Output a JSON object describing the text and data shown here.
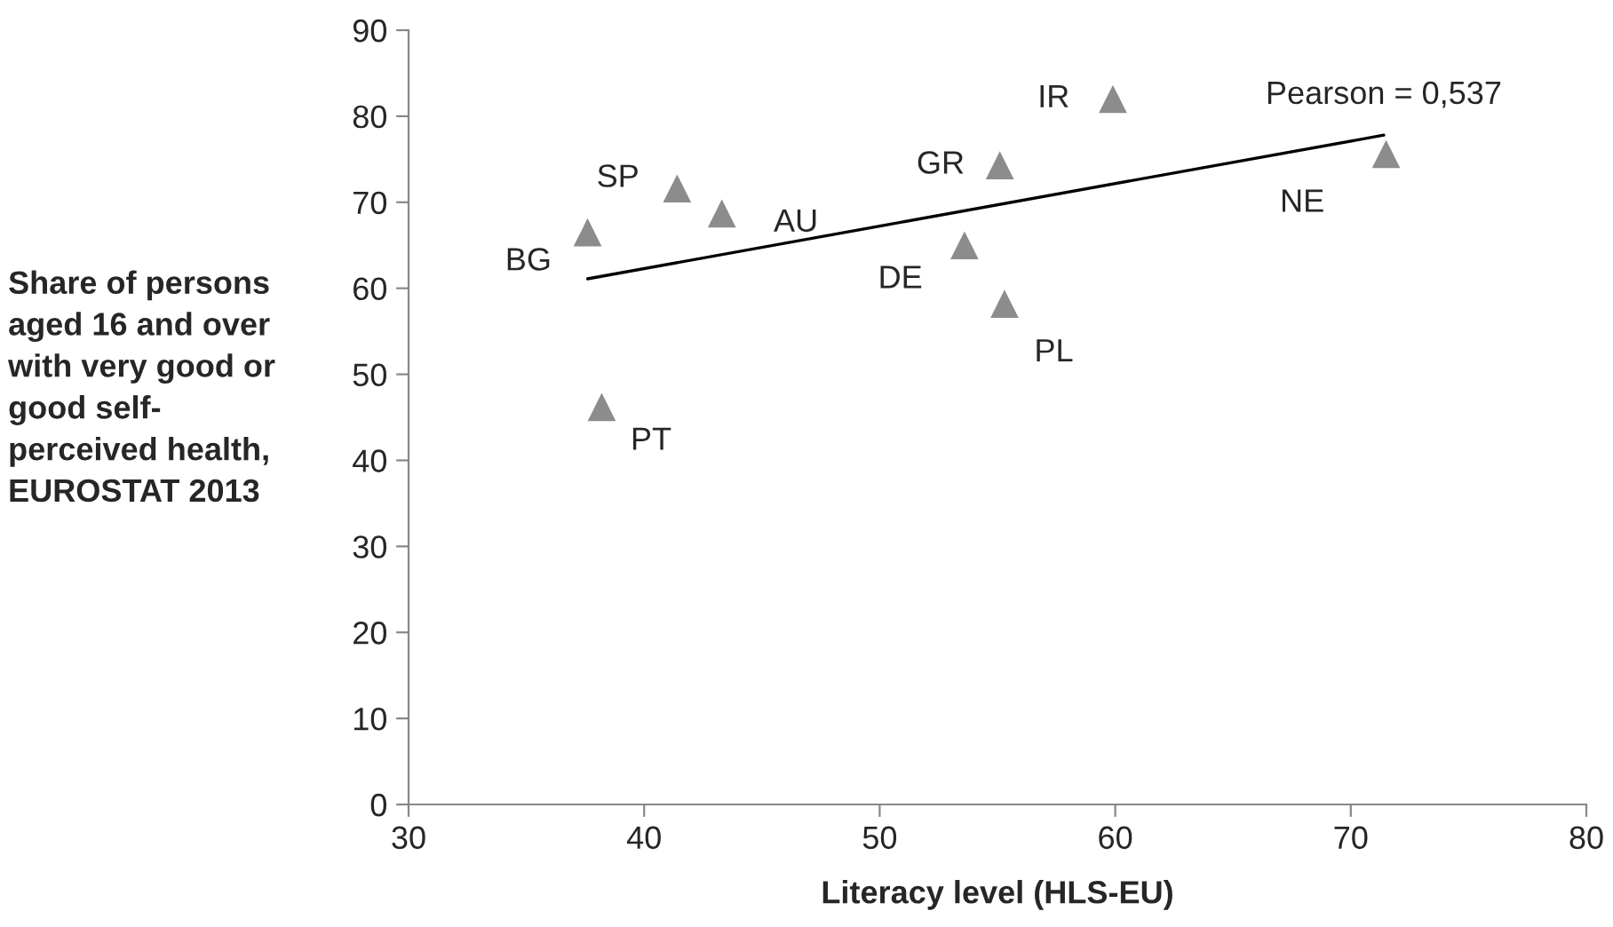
{
  "chart_data": {
    "type": "scatter",
    "xlabel": "Literacy level (HLS-EU)",
    "ylabel": "Share of persons\naged 16 and over\nwith very good or\ngood self-\nperceived health,\nEUROSTAT 2013",
    "series": [
      {
        "color": "#8c8c8c",
        "marker": "triangle",
        "x": [
          37.6,
          41.4,
          43.3,
          38.2,
          55.1,
          53.6,
          55.3,
          59.9,
          71.5
        ],
        "values": [
          66.5,
          71.6,
          68.7,
          46.2,
          74.3,
          65.0,
          58.2,
          82.0,
          75.6
        ],
        "value_labels": [
          "BG",
          "SP",
          "AU",
          "PT",
          "GR",
          "DE",
          "PL",
          "IR",
          "NE"
        ]
      },
      {
        "type": "line",
        "color": "#000000",
        "x": [
          37.6,
          71.4
        ],
        "values": [
          61.1,
          77.8
        ]
      }
    ],
    "annotations": [
      {
        "text": "Pearson = 0,537",
        "x": 71.4,
        "y": 77.8
      }
    ],
    "xlim": [
      30,
      80
    ],
    "xticks": [
      30,
      40,
      50,
      60,
      70,
      80
    ],
    "ylim": [
      0,
      90
    ],
    "yticks": [
      0,
      10,
      20,
      30,
      40,
      50,
      60,
      70,
      80,
      90
    ],
    "grid": false,
    "legend": false
  }
}
